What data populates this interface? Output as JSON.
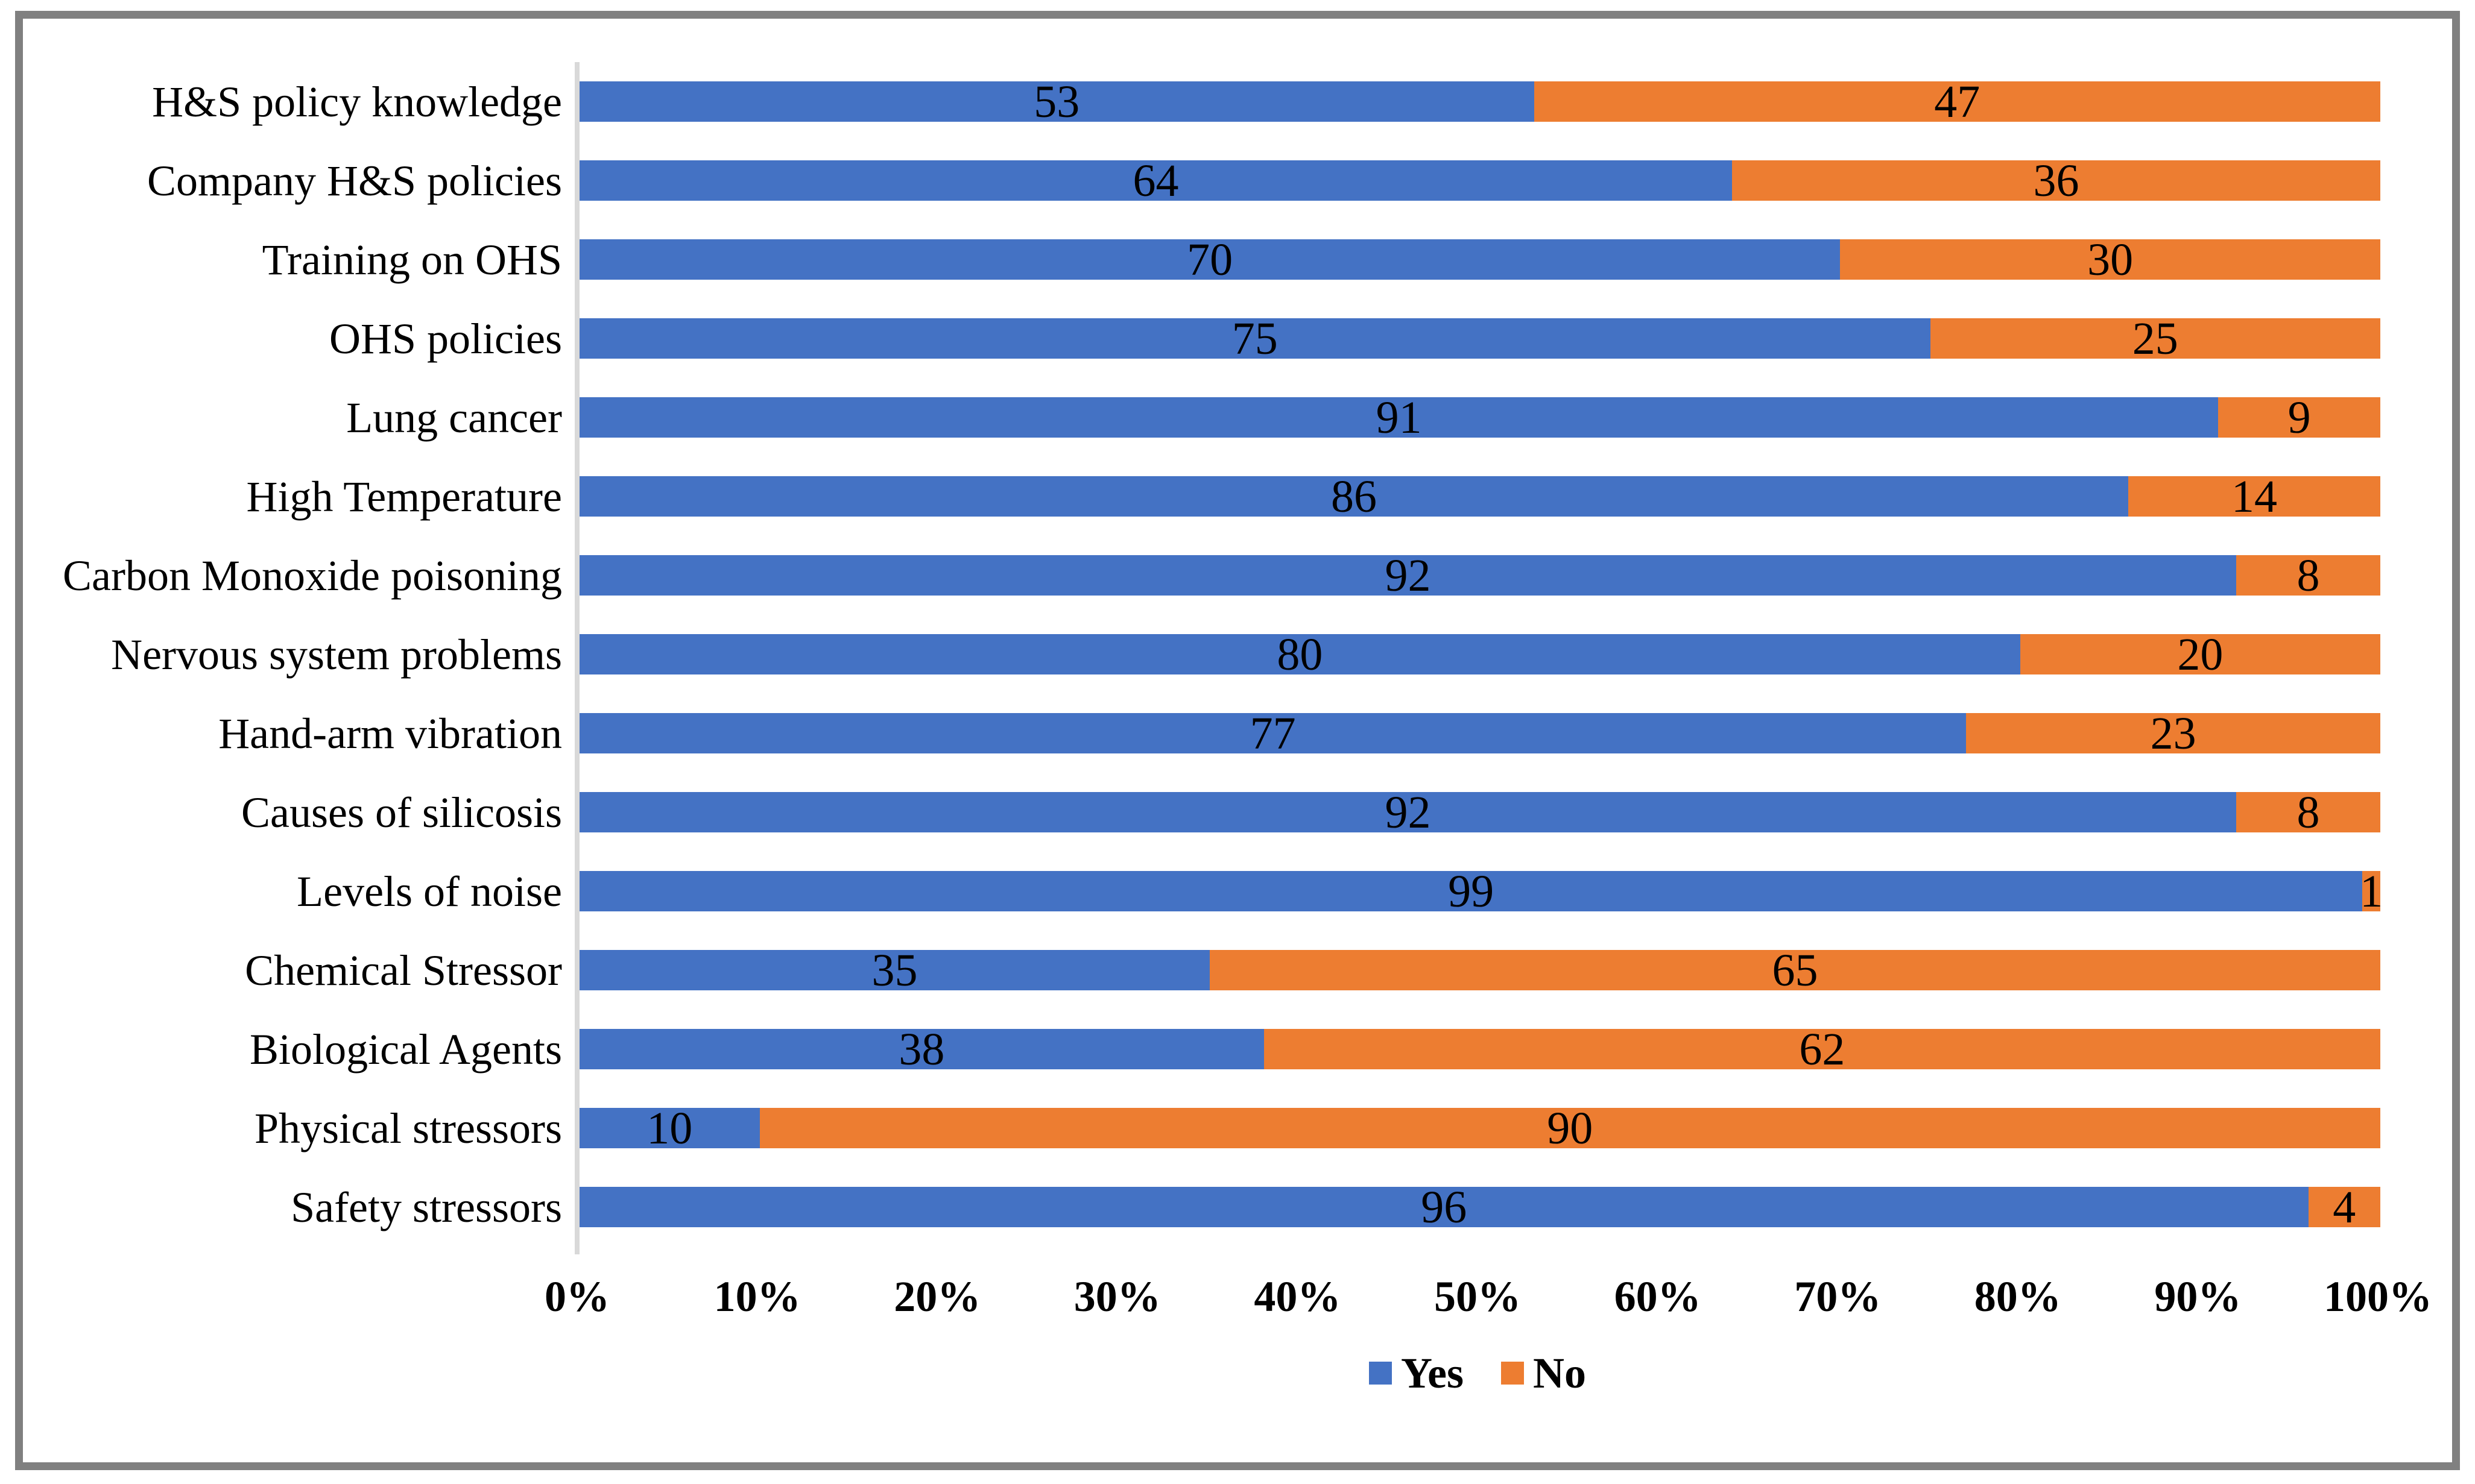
{
  "chart_data": {
    "type": "bar",
    "orientation": "horizontal",
    "stacked": true,
    "stacked_total": 100,
    "title": "",
    "categories": [
      "H&S policy knowledge",
      "Company H&S policies",
      "Training on OHS",
      "OHS policies",
      "Lung cancer",
      "High Temperature",
      "Carbon Monoxide poisoning",
      "Nervous system problems",
      "Hand-arm vibration",
      "Causes of silicosis",
      "Levels of noise",
      "Chemical Stressor",
      "Biological Agents",
      "Physical stressors",
      "Safety stressors"
    ],
    "series": [
      {
        "name": "Yes",
        "color": "#4472C4",
        "values": [
          53,
          64,
          70,
          75,
          91,
          86,
          92,
          80,
          77,
          92,
          99,
          35,
          38,
          10,
          96
        ]
      },
      {
        "name": "No",
        "color": "#ED7D31",
        "values": [
          47,
          36,
          30,
          25,
          9,
          14,
          8,
          20,
          23,
          8,
          1,
          65,
          62,
          90,
          4
        ]
      }
    ],
    "x_axis": {
      "min": 0,
      "max": 100,
      "tick_step": 10,
      "tick_labels": [
        "0%",
        "10%",
        "20%",
        "30%",
        "40%",
        "50%",
        "60%",
        "70%",
        "80%",
        "90%",
        "100%"
      ]
    },
    "legend": {
      "position": "bottom",
      "entries": [
        "Yes",
        "No"
      ]
    },
    "grid": false,
    "data_labels": "inside-center"
  },
  "style": {
    "yes_color": "#4472C4",
    "no_color": "#ED7D31",
    "axis_line_color": "#D9D9D9",
    "frame_border_color": "#808080",
    "text_color": "#000000",
    "background_color": "#FFFFFF"
  }
}
